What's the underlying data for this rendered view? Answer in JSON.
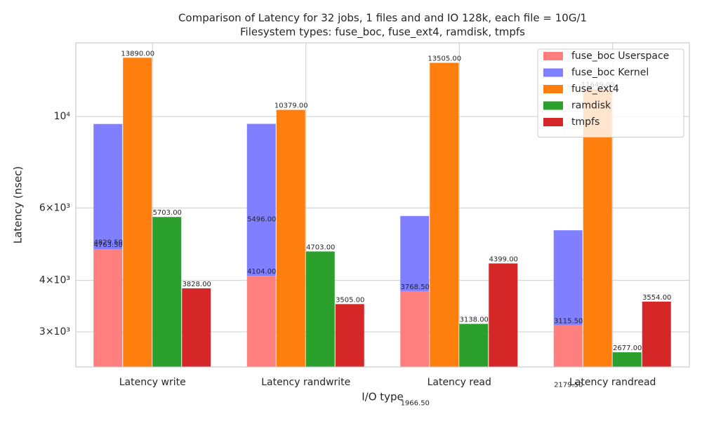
{
  "chart_data": {
    "type": "bar",
    "title": "Comparison of Latency for 32 jobs, 1 files and  and IO 128k, each file = 10G/1",
    "subtitle": "Filesystem types: fuse_boc, fuse_ext4, ramdisk, tmpfs",
    "x_label": "I/O type",
    "y_label": "Latency (nsec)",
    "categories": [
      "Latency write",
      "Latency randwrite",
      "Latency read",
      "Latency randread"
    ],
    "series": [
      {
        "name": "fuse_boc Userspace",
        "color": "#ff7f7f",
        "values": [
          4763.5,
          4104,
          3768.5,
          3115.5
        ],
        "value_labels": [
          "4763.50",
          "4104.00",
          "3768.50",
          "3115.50"
        ]
      },
      {
        "name": "fuse_boc Kernel",
        "color": "#7f7fff",
        "stacked": true,
        "values": [
          4829.5,
          5496,
          1966.5,
          2179.5
        ],
        "value_labels": [
          "4829.50",
          "5496.00",
          "1966.50",
          "2179.50"
        ]
      },
      {
        "name": "fuse_ext4",
        "color": "#ff7f0e",
        "values": [
          13890,
          10379,
          13505,
          11649
        ],
        "value_labels": [
          "13890.00",
          "10379.00",
          "13505.00",
          "11649.00"
        ]
      },
      {
        "name": "ramdisk",
        "color": "#2ca02c",
        "values": [
          5703,
          4703,
          3138,
          2677
        ],
        "value_labels": [
          "5703.00",
          "4703.00",
          "3138.00",
          "2677.00"
        ]
      },
      {
        "name": "tmpfs",
        "color": "#d62728",
        "values": [
          3828,
          3505,
          4399,
          3554
        ],
        "value_labels": [
          "3828.00",
          "3505.00",
          "4399.00",
          "3554.00"
        ]
      }
    ],
    "log_y": true,
    "ylim": [
      2466,
      15100
    ],
    "yticks": [
      {
        "value": 3000,
        "label": "3×10³"
      },
      {
        "value": 4000,
        "label": "4×10³"
      },
      {
        "value": 6000,
        "label": "6×10³"
      },
      {
        "value": 10000,
        "label": "10⁴"
      }
    ],
    "grid": true,
    "legend": "upper right"
  }
}
